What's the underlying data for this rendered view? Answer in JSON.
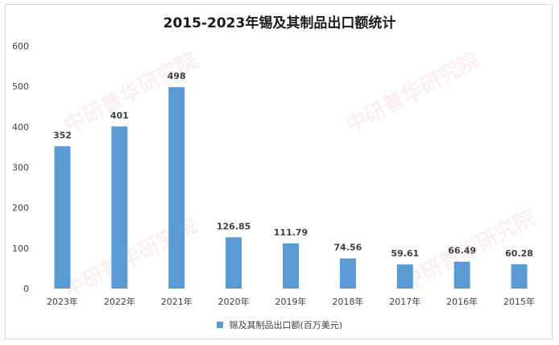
{
  "chart_data": {
    "type": "bar",
    "title": "2015-2023年锡及其制品出口额统计",
    "categories": [
      "2023年",
      "2022年",
      "2021年",
      "2020年",
      "2019年",
      "2018年",
      "2017年",
      "2016年",
      "2015年"
    ],
    "series": [
      {
        "name": "锡及其制品出口额(百万美元)",
        "values": [
          352,
          401,
          498,
          126.85,
          111.79,
          74.56,
          59.61,
          66.49,
          60.28
        ],
        "labels": [
          "352",
          "401",
          "498",
          "126.85",
          "111.79",
          "74.56",
          "59.61",
          "66.49",
          "60.28"
        ],
        "color": "#5b9bd5"
      }
    ],
    "ylim": [
      0,
      600
    ],
    "yticks": [
      "0",
      "100",
      "200",
      "300",
      "400",
      "500",
      "600"
    ],
    "xlabel": "",
    "ylabel": "",
    "legend_position": "bottom",
    "grid": false
  },
  "watermark_text": "中研普华研究院"
}
